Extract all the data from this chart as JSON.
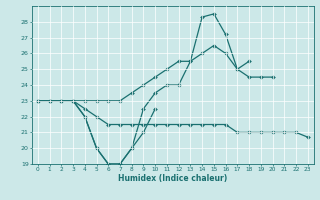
{
  "xlabel": "Humidex (Indice chaleur)",
  "bg_color": "#cce8e8",
  "line_color": "#1a7070",
  "grid_color": "#ffffff",
  "xlim": [
    -0.5,
    23.5
  ],
  "ylim": [
    19,
    29
  ],
  "yticks": [
    19,
    20,
    21,
    22,
    23,
    24,
    25,
    26,
    27,
    28
  ],
  "xticks": [
    0,
    1,
    2,
    3,
    4,
    5,
    6,
    7,
    8,
    9,
    10,
    11,
    12,
    13,
    14,
    15,
    16,
    17,
    18,
    19,
    20,
    21,
    22,
    23
  ],
  "line1_x": [
    0,
    1,
    2,
    3,
    4,
    5,
    6,
    7,
    8,
    9,
    10,
    11,
    12,
    13,
    14,
    15,
    16,
    17,
    18
  ],
  "line1_y": [
    23,
    23,
    23,
    23,
    22,
    20,
    19,
    19,
    20,
    22.5,
    23.5,
    24,
    24,
    25.5,
    28.3,
    28.5,
    27.2,
    25,
    25.5
  ],
  "line2_x": [
    0,
    1,
    2,
    3,
    4,
    5,
    6,
    7,
    8,
    9,
    10
  ],
  "line2_y": [
    23,
    23,
    23,
    23,
    22,
    20,
    19,
    19,
    20,
    21,
    22.5
  ],
  "line3_x": [
    0,
    1,
    2,
    3,
    4,
    5,
    6,
    7,
    8,
    9,
    10,
    11,
    12,
    13,
    14,
    15,
    16,
    17,
    18,
    19,
    20
  ],
  "line3_y": [
    23,
    23,
    23,
    23,
    23,
    23,
    23,
    23,
    23.5,
    24,
    24.5,
    25,
    25.5,
    25.5,
    26,
    26.5,
    26,
    25,
    24.5,
    24.5,
    24.5
  ],
  "line4_x": [
    0,
    1,
    2,
    3,
    4,
    5,
    6,
    7,
    8,
    9,
    10,
    11,
    12,
    13,
    14,
    15,
    16,
    17,
    18,
    19,
    20,
    21,
    22,
    23
  ],
  "line4_y": [
    23,
    23,
    23,
    23,
    22.5,
    22,
    21.5,
    21.5,
    21.5,
    21.5,
    21.5,
    21.5,
    21.5,
    21.5,
    21.5,
    21.5,
    21.5,
    21,
    21,
    21,
    21,
    21,
    21,
    20.7
  ],
  "lw": 0.9,
  "ms": 2.0
}
